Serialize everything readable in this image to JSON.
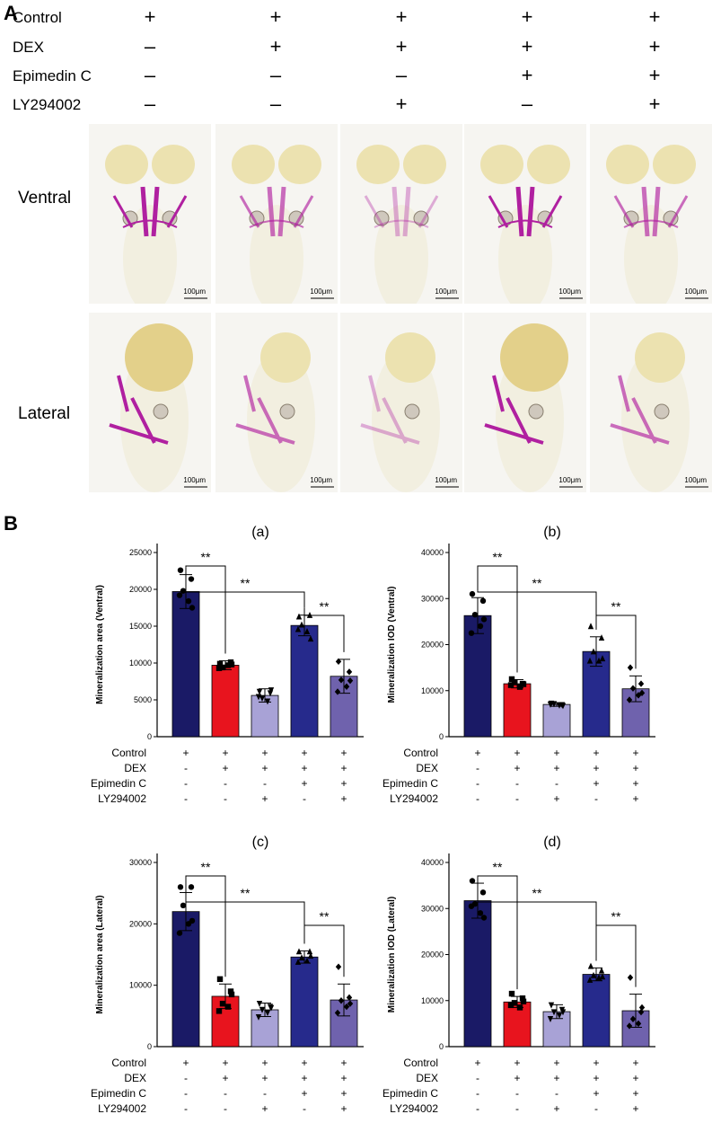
{
  "panel_a": {
    "letter": "A",
    "rows": [
      {
        "label": "Control",
        "signs": [
          "+",
          "+",
          "+",
          "+",
          "+"
        ]
      },
      {
        "label": "DEX",
        "signs": [
          "–",
          "+",
          "+",
          "+",
          "+"
        ]
      },
      {
        "label": "Epimedin C",
        "signs": [
          "–",
          "–",
          "–",
          "+",
          "+"
        ]
      },
      {
        "label": "LY294002",
        "signs": [
          "–",
          "–",
          "+",
          "–",
          "+"
        ]
      }
    ],
    "views": [
      {
        "label": "Ventral",
        "scale": [
          "100μm",
          "100μm",
          "100μm",
          "100μm",
          "100μm"
        ]
      },
      {
        "label": "Lateral",
        "scale": [
          "100μm",
          "100μm",
          "100μm",
          "100μm",
          "100μm"
        ]
      }
    ]
  },
  "panel_b": {
    "letter": "B"
  },
  "colors": {
    "control": "#1a1a66",
    "dex": "#e8141e",
    "ly": "#a8a2d6",
    "epi": "#262a8c",
    "combo": "#6f62ad"
  },
  "chart_data": [
    {
      "type": "bar",
      "title": "(a)",
      "ylabel": "Mineralization area (Ventral)",
      "ylim": [
        0,
        25000
      ],
      "ticks": [
        0,
        5000,
        10000,
        15000,
        20000,
        25000
      ],
      "categories": [
        "Control",
        "DEX",
        "DEX+LY294002",
        "DEX+Epimedin C",
        "DEX+Epimedin C+LY294002"
      ],
      "values": [
        19700,
        9700,
        5600,
        15100,
        8200
      ],
      "errors": [
        2300,
        600,
        900,
        1400,
        2300
      ],
      "points": [
        [
          22600,
          21400,
          19800,
          18400,
          19200,
          17500
        ],
        [
          9900,
          10100,
          9400,
          9700,
          9300,
          9800
        ],
        [
          6100,
          5900,
          5200,
          4800,
          5400,
          6300
        ],
        [
          16300,
          16500,
          15200,
          14300,
          14600,
          13300
        ],
        [
          10200,
          8800,
          7700,
          6800,
          6100,
          7600
        ]
      ],
      "markers": [
        "circle",
        "square",
        "triangle-down",
        "triangle",
        "diamond"
      ],
      "significance": [
        {
          "from": 0,
          "to": 1,
          "label": "**"
        },
        {
          "from": 0,
          "to": 3,
          "label": "**"
        },
        {
          "from": 3,
          "to": 4,
          "label": "**"
        }
      ],
      "treatment_rows": [
        {
          "label": "Control",
          "signs": [
            "+",
            "+",
            "+",
            "+",
            "+"
          ]
        },
        {
          "label": "DEX",
          "signs": [
            "-",
            "+",
            "+",
            "+",
            "+"
          ]
        },
        {
          "label": "Epimedin C",
          "signs": [
            "-",
            "-",
            "-",
            "+",
            "+"
          ]
        },
        {
          "label": "LY294002",
          "signs": [
            "-",
            "-",
            "+",
            "-",
            "+"
          ]
        }
      ]
    },
    {
      "type": "bar",
      "title": "(b)",
      "ylabel": "Mineralization IOD (Ventral)",
      "ylim": [
        0,
        40000
      ],
      "ticks": [
        0,
        10000,
        20000,
        30000,
        40000
      ],
      "categories": [
        "Control",
        "DEX",
        "DEX+LY294002",
        "DEX+Epimedin C",
        "DEX+Epimedin C+LY294002"
      ],
      "values": [
        26300,
        11500,
        7000,
        18500,
        10400
      ],
      "errors": [
        3900,
        900,
        400,
        3200,
        2800
      ],
      "points": [
        [
          31000,
          29500,
          26500,
          24000,
          22500,
          25500
        ],
        [
          12500,
          11500,
          11800,
          10800,
          11200,
          11400
        ],
        [
          7200,
          6900,
          7100,
          6800,
          7000,
          6700
        ],
        [
          24000,
          21500,
          18500,
          16500,
          16500,
          17000
        ],
        [
          15000,
          11500,
          10500,
          9000,
          8000,
          9500
        ]
      ],
      "markers": [
        "circle",
        "square",
        "triangle-down",
        "triangle",
        "diamond"
      ],
      "significance": [
        {
          "from": 0,
          "to": 1,
          "label": "**"
        },
        {
          "from": 0,
          "to": 3,
          "label": "**"
        },
        {
          "from": 3,
          "to": 4,
          "label": "**"
        }
      ],
      "treatment_rows": [
        {
          "label": "Control",
          "signs": [
            "+",
            "+",
            "+",
            "+",
            "+"
          ]
        },
        {
          "label": "DEX",
          "signs": [
            "-",
            "+",
            "+",
            "+",
            "+"
          ]
        },
        {
          "label": "Epimedin C",
          "signs": [
            "-",
            "-",
            "-",
            "+",
            "+"
          ]
        },
        {
          "label": "LY294002",
          "signs": [
            "-",
            "-",
            "+",
            "-",
            "+"
          ]
        }
      ]
    },
    {
      "type": "bar",
      "title": "(c)",
      "ylabel": "Mineralization area (Lateral)",
      "ylim": [
        0,
        30000
      ],
      "ticks": [
        0,
        10000,
        20000,
        30000
      ],
      "categories": [
        "Control",
        "DEX",
        "DEX+LY294002",
        "DEX+Epimedin C",
        "DEX+Epimedin C+LY294002"
      ],
      "values": [
        22000,
        8200,
        6000,
        14600,
        7600
      ],
      "errors": [
        3100,
        2000,
        1100,
        1000,
        2600
      ],
      "points": [
        [
          26000,
          26000,
          23000,
          20000,
          18500,
          20500
        ],
        [
          11000,
          9000,
          7000,
          6500,
          5800,
          8500
        ],
        [
          7000,
          6500,
          6000,
          5500,
          4800,
          6300
        ],
        [
          15500,
          15500,
          14500,
          14000,
          13800,
          14800
        ],
        [
          13000,
          8000,
          7500,
          6500,
          5500,
          7000
        ]
      ],
      "markers": [
        "circle",
        "square",
        "triangle-down",
        "triangle",
        "diamond"
      ],
      "significance": [
        {
          "from": 0,
          "to": 1,
          "label": "**"
        },
        {
          "from": 0,
          "to": 3,
          "label": "**"
        },
        {
          "from": 3,
          "to": 4,
          "label": "**"
        }
      ],
      "treatment_rows": [
        {
          "label": "Control",
          "signs": [
            "+",
            "+",
            "+",
            "+",
            "+"
          ]
        },
        {
          "label": "DEX",
          "signs": [
            "-",
            "+",
            "+",
            "+",
            "+"
          ]
        },
        {
          "label": "Epimedin C",
          "signs": [
            "-",
            "-",
            "-",
            "+",
            "+"
          ]
        },
        {
          "label": "LY294002",
          "signs": [
            "-",
            "-",
            "+",
            "-",
            "+"
          ]
        }
      ]
    },
    {
      "type": "bar",
      "title": "(d)",
      "ylabel": "Mineralization IOD (Lateral)",
      "ylim": [
        0,
        40000
      ],
      "ticks": [
        0,
        10000,
        20000,
        30000,
        40000
      ],
      "categories": [
        "Control",
        "DEX",
        "DEX+LY294002",
        "DEX+Epimedin C",
        "DEX+Epimedin C+LY294002"
      ],
      "values": [
        31700,
        9700,
        7600,
        15700,
        7800
      ],
      "errors": [
        3800,
        1200,
        1500,
        1400,
        3600
      ],
      "points": [
        [
          36000,
          33500,
          31000,
          29000,
          30500,
          28000
        ],
        [
          11500,
          10500,
          9500,
          8500,
          9000,
          9800
        ],
        [
          9000,
          8000,
          7500,
          6800,
          6000,
          7500
        ],
        [
          17500,
          16500,
          15500,
          15000,
          14500,
          15200
        ],
        [
          15000,
          7500,
          6000,
          5000,
          4500,
          8500
        ]
      ],
      "markers": [
        "circle",
        "square",
        "triangle-down",
        "triangle",
        "diamond"
      ],
      "significance": [
        {
          "from": 0,
          "to": 1,
          "label": "**"
        },
        {
          "from": 0,
          "to": 3,
          "label": "**"
        },
        {
          "from": 3,
          "to": 4,
          "label": "**"
        }
      ],
      "treatment_rows": [
        {
          "label": "Control",
          "signs": [
            "+",
            "+",
            "+",
            "+",
            "+"
          ]
        },
        {
          "label": "DEX",
          "signs": [
            "-",
            "+",
            "+",
            "+",
            "+"
          ]
        },
        {
          "label": "Epimedin C",
          "signs": [
            "-",
            "-",
            "-",
            "+",
            "+"
          ]
        },
        {
          "label": "LY294002",
          "signs": [
            "-",
            "-",
            "+",
            "-",
            "+"
          ]
        }
      ]
    }
  ]
}
